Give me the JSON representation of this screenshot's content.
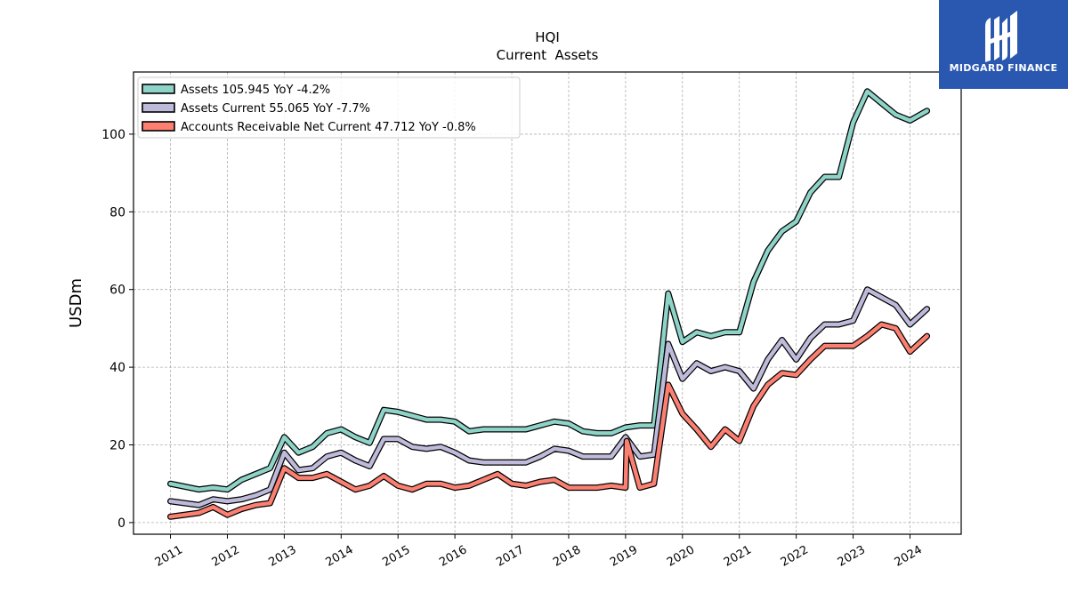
{
  "chart_data": {
    "type": "line",
    "title": "HQI",
    "subtitle": "Current  Assets",
    "ylabel": "USDm",
    "ylim": [
      -3,
      116
    ],
    "xlim": [
      2010.35,
      2024.9
    ],
    "yticks": [
      0,
      20,
      40,
      60,
      80,
      100
    ],
    "xticks": [
      2011,
      2012,
      2013,
      2014,
      2015,
      2016,
      2017,
      2018,
      2019,
      2020,
      2021,
      2022,
      2023,
      2024
    ],
    "grid": true,
    "legend_position": "top-left",
    "series": [
      {
        "name": "Assets",
        "legend": "Assets  105.945 YoY -4.2%",
        "color": "#8dd3c7",
        "x": [
          2011.0,
          2011.5,
          2011.75,
          2012.0,
          2012.25,
          2012.5,
          2012.75,
          2013.0,
          2013.25,
          2013.5,
          2013.75,
          2014.0,
          2014.25,
          2014.5,
          2014.75,
          2015.0,
          2015.25,
          2015.5,
          2015.75,
          2016.0,
          2016.25,
          2016.5,
          2016.75,
          2017.0,
          2017.25,
          2017.5,
          2017.75,
          2018.0,
          2018.25,
          2018.5,
          2018.75,
          2019.0,
          2019.25,
          2019.5,
          2019.75,
          2020.0,
          2020.25,
          2020.5,
          2020.75,
          2021.0,
          2021.25,
          2021.5,
          2021.75,
          2022.0,
          2022.25,
          2022.5,
          2022.75,
          2023.0,
          2023.25,
          2023.5,
          2023.75,
          2024.0,
          2024.3
        ],
        "values": [
          10,
          8.5,
          9,
          8.5,
          11,
          12.5,
          14,
          22,
          18,
          19.5,
          23,
          24,
          22,
          20.5,
          29,
          28.5,
          27.5,
          26.5,
          26.5,
          26,
          23.5,
          24,
          24,
          24,
          24,
          25,
          26,
          25.5,
          23.5,
          23,
          23,
          24.5,
          25,
          25,
          59,
          46.5,
          49,
          48,
          49,
          49,
          62,
          70,
          75,
          77.5,
          85,
          89,
          89,
          103,
          111,
          108,
          105,
          103.5,
          106
        ]
      },
      {
        "name": "Assets Current",
        "legend": "Assets Current  55.065 YoY -7.7%",
        "color": "#bebada",
        "x": [
          2011.0,
          2011.5,
          2011.75,
          2012.0,
          2012.25,
          2012.5,
          2012.75,
          2013.0,
          2013.25,
          2013.5,
          2013.75,
          2014.0,
          2014.25,
          2014.5,
          2014.75,
          2015.0,
          2015.25,
          2015.5,
          2015.75,
          2016.0,
          2016.25,
          2016.5,
          2016.75,
          2017.0,
          2017.25,
          2017.5,
          2017.75,
          2018.0,
          2018.25,
          2018.5,
          2018.75,
          2019.0,
          2019.25,
          2019.5,
          2019.75,
          2020.0,
          2020.25,
          2020.5,
          2020.75,
          2021.0,
          2021.25,
          2021.5,
          2021.75,
          2022.0,
          2022.25,
          2022.5,
          2022.75,
          2023.0,
          2023.25,
          2023.5,
          2023.75,
          2024.0,
          2024.3
        ],
        "values": [
          5.5,
          4.5,
          6,
          5.5,
          6,
          7,
          8.5,
          18,
          13.5,
          14,
          17,
          18,
          16,
          14.5,
          21.5,
          21.5,
          19.5,
          19,
          19.5,
          18,
          16,
          15.5,
          15.5,
          15.5,
          15.5,
          17,
          19,
          18.5,
          17,
          17,
          17,
          22,
          17,
          17.5,
          46,
          37,
          41,
          39,
          40,
          39,
          34.5,
          42,
          47,
          42,
          47.5,
          51,
          51,
          52,
          60,
          58,
          56,
          51,
          55
        ]
      },
      {
        "name": "Accounts Receivable Net Current",
        "legend": "Accounts Receivable Net Current  47.712 YoY -0.8%",
        "color": "#fb8072",
        "x": [
          2011.0,
          2011.5,
          2011.75,
          2012.0,
          2012.25,
          2012.5,
          2012.75,
          2013.0,
          2013.25,
          2013.5,
          2013.75,
          2014.0,
          2014.25,
          2014.5,
          2014.75,
          2015.0,
          2015.25,
          2015.5,
          2015.75,
          2016.0,
          2016.25,
          2016.5,
          2016.75,
          2017.0,
          2017.25,
          2017.5,
          2017.75,
          2018.0,
          2018.25,
          2018.5,
          2018.75,
          2019.0,
          2019.02,
          2019.25,
          2019.5,
          2019.75,
          2020.0,
          2020.25,
          2020.5,
          2020.75,
          2021.0,
          2021.25,
          2021.5,
          2021.75,
          2022.0,
          2022.25,
          2022.5,
          2022.75,
          2023.0,
          2023.25,
          2023.5,
          2023.75,
          2024.0,
          2024.3
        ],
        "values": [
          1.5,
          2.5,
          4,
          2,
          3.5,
          4.5,
          5,
          14,
          11.5,
          11.5,
          12.5,
          10.5,
          8.5,
          9.5,
          12,
          9.5,
          8.5,
          10,
          10,
          9,
          9.5,
          11,
          12.5,
          10,
          9.5,
          10.5,
          11,
          9,
          9,
          9,
          9.5,
          9,
          21,
          9,
          10,
          35.5,
          28,
          24,
          19.5,
          24,
          21,
          30,
          35.5,
          38.5,
          38,
          42,
          45.5,
          45.5,
          45.5,
          48,
          51,
          50,
          44,
          48
        ]
      }
    ]
  },
  "logo": {
    "text": "MIDGARD FINANCE",
    "bg_color": "#2a58b0"
  }
}
